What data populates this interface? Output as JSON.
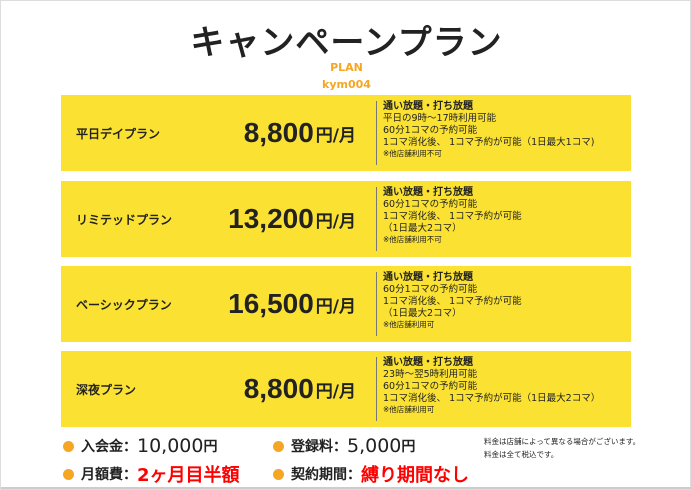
{
  "title": "キャンペーンプラン",
  "subtitle": "PLAN",
  "store": "kym004",
  "accent": "#f5a623",
  "plan_bg": "#fbe232",
  "plans": [
    {
      "name": "平日デイプラン",
      "price": "8,800",
      "unit": "円/月",
      "heading": "通い放題・打ち放題",
      "lines": [
        "平日の9時〜17時利用可能",
        "60分1コマの予約可能",
        "1コマ消化後、 1コマ予約が可能（1日最大1コマ)"
      ],
      "note": "※他店舗利用不可"
    },
    {
      "name": "リミテッドプラン",
      "price": "13,200",
      "unit": "円/月",
      "heading": "通い放題・打ち放題",
      "lines": [
        "60分1コマの予約可能",
        "1コマ消化後、 1コマ予約が可能",
        "（1日最大2コマ）"
      ],
      "note": "※他店舗利用不可"
    },
    {
      "name": "ベーシックプラン",
      "price": "16,500",
      "unit": "円/月",
      "heading": "通い放題・打ち放題",
      "lines": [
        "60分1コマの予約可能",
        "1コマ消化後、 1コマ予約が可能",
        "（1日最大2コマ）"
      ],
      "note": "※他店舗利用可"
    },
    {
      "name": "深夜プラン",
      "price": "8,800",
      "unit": "円/月",
      "heading": "通い放題・打ち放題",
      "lines": [
        "23時〜翌5時利用可能",
        "60分1コマの予約可能",
        "1コマ消化後、 1コマ予約が可能（1日最大2コマ）"
      ],
      "note": "※他店舗利用可"
    }
  ],
  "fees": {
    "entry_label": "入会金：",
    "entry_value": "10,000",
    "entry_unit": "円",
    "reg_label": "登録料：",
    "reg_value": "5,000",
    "reg_unit": "円",
    "monthly_label": "月額費：",
    "monthly_value": "2ヶ月目半額",
    "contract_label": "契約期間：",
    "contract_value": "縛り期間なし"
  },
  "notes": [
    "料金は店舗によって異なる場合がございます。",
    "料金は全て税込です。"
  ]
}
